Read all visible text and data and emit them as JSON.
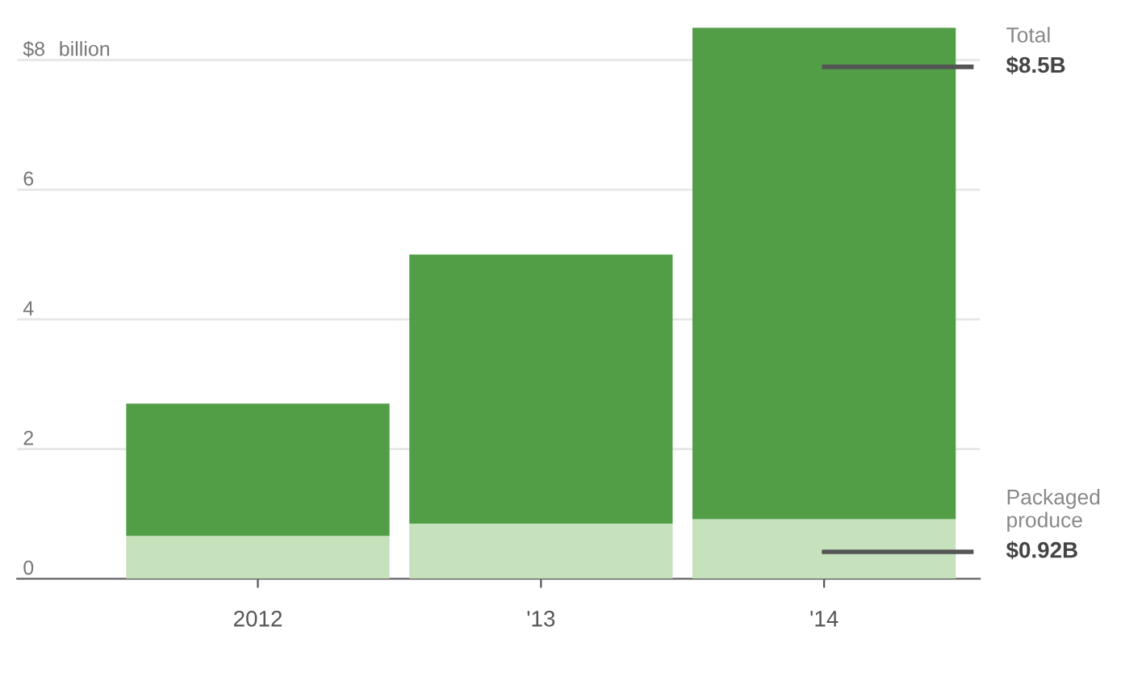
{
  "chart_data": {
    "type": "bar",
    "stacked": true,
    "categories": [
      "2012",
      "'13",
      "'14"
    ],
    "series": [
      {
        "color": "#c5e2bc",
        "values": [
          0.66,
          0.85,
          0.92
        ]
      },
      {
        "color": "#529e47",
        "values": [
          2.04,
          4.15,
          7.58
        ]
      }
    ],
    "annotations": [
      "Total",
      "$8.5B",
      "Packaged produce",
      "$0.92B"
    ],
    "ylabel": "billion",
    "ylim": [
      0,
      8.5
    ],
    "yticks": [
      0,
      2,
      4,
      6,
      {
        "value": 8,
        "label": "$8"
      }
    ],
    "grid": "y"
  }
}
